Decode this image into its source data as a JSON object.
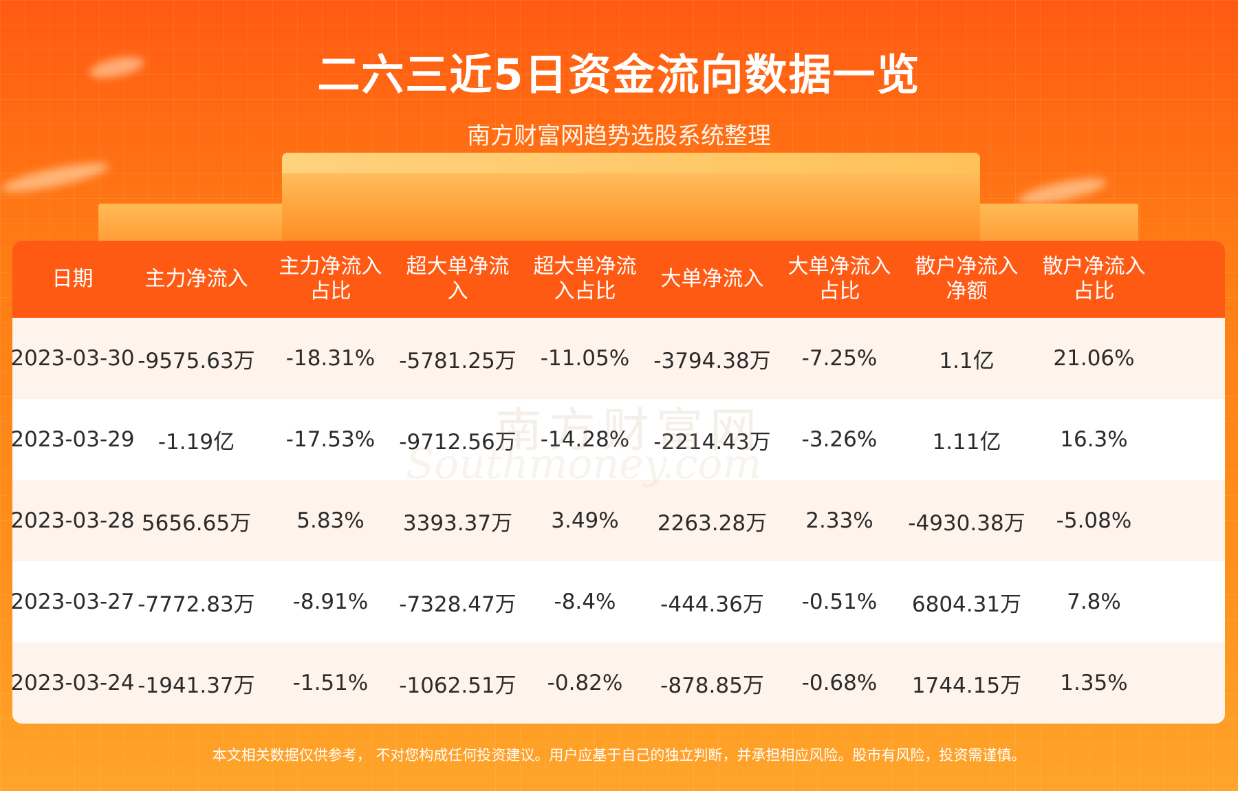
{
  "title": "二六三近5日资金流向数据一览",
  "subtitle": "南方财富网趋势选股系统整理",
  "table": {
    "headers": [
      "日期",
      "主力净流入",
      "主力净流入\n占比",
      "超大单净流\n入",
      "超大单净流\n入占比",
      "大单净流入",
      "大单净流入\n占比",
      "散户净流入\n净额",
      "散户净流入\n占比"
    ],
    "rows": [
      [
        "2023-03-30",
        "-9575.63万",
        "-18.31%",
        "-5781.25万",
        "-11.05%",
        "-3794.38万",
        "-7.25%",
        "1.1亿",
        "21.06%"
      ],
      [
        "2023-03-29",
        "-1.19亿",
        "-17.53%",
        "-9712.56万",
        "-14.28%",
        "-2214.43万",
        "-3.26%",
        "1.11亿",
        "16.3%"
      ],
      [
        "2023-03-28",
        "5656.65万",
        "5.83%",
        "3393.37万",
        "3.49%",
        "2263.28万",
        "2.33%",
        "-4930.38万",
        "-5.08%"
      ],
      [
        "2023-03-27",
        "-7772.83万",
        "-8.91%",
        "-7328.47万",
        "-8.4%",
        "-444.36万",
        "-0.51%",
        "6804.31万",
        "7.8%"
      ],
      [
        "2023-03-24",
        "-1941.37万",
        "-1.51%",
        "-1062.51万",
        "-0.82%",
        "-878.85万",
        "-0.68%",
        "1744.15万",
        "1.35%"
      ]
    ]
  },
  "watermark": {
    "cn": "南方财富网",
    "en": "Southmoney.com"
  },
  "disclaimer": "本文相关数据仅供参考， 不对您构成任何投资建议。用户应基于自己的独立判断，并承担相应风险。股市有风险，投资需谨慎。",
  "colors": {
    "header_bg": "#ff5a14",
    "row_odd": "#fff4ec",
    "row_even": "#ffffff"
  }
}
